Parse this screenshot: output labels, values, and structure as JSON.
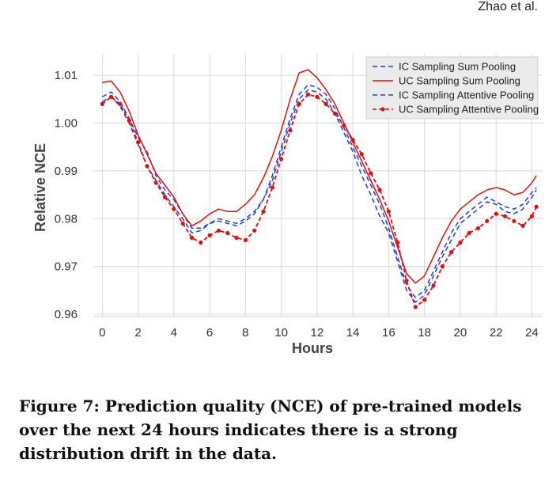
{
  "header": {
    "author": "Zhao et al."
  },
  "caption": {
    "text": "Figure 7: Prediction quality (NCE) of pre-trained models over the next 24 hours indicates there is a strong distribution drift in the data."
  },
  "chart_data": {
    "type": "line",
    "title": "",
    "xlabel": "Hours",
    "ylabel": "Relative NCE",
    "xlim": [
      -0.5,
      24.6
    ],
    "ylim": [
      0.9595,
      1.0145
    ],
    "x_ticks": [
      0,
      2,
      4,
      6,
      8,
      10,
      12,
      14,
      16,
      18,
      20,
      22,
      24
    ],
    "y_ticks": [
      0.96,
      0.97,
      0.98,
      0.99,
      1.0,
      1.01
    ],
    "y_tick_labels": [
      "0.96",
      "0.97",
      "0.98",
      "0.99",
      "1.00",
      "1.01"
    ],
    "grid": true,
    "legend_position": "top-right",
    "x": [
      0,
      0.5,
      1,
      1.5,
      2,
      2.5,
      3,
      3.5,
      4,
      4.5,
      5,
      5.5,
      6,
      6.5,
      7,
      7.5,
      8,
      8.5,
      9,
      9.5,
      10,
      10.5,
      11,
      11.5,
      12,
      12.5,
      13,
      13.5,
      14,
      14.5,
      15,
      15.5,
      16,
      16.5,
      17,
      17.5,
      18,
      18.5,
      19,
      19.5,
      20,
      20.5,
      21,
      21.5,
      22,
      22.5,
      23,
      23.5,
      24,
      24.25
    ],
    "series": [
      {
        "name": "IC Sampling Sum Pooling",
        "color": "#1f3fd6",
        "style": "dashed",
        "marker": false,
        "values": [
          1.0055,
          1.0065,
          1.0045,
          1.001,
          0.997,
          0.994,
          0.989,
          0.986,
          0.984,
          0.981,
          0.978,
          0.978,
          0.979,
          0.98,
          0.9795,
          0.979,
          0.98,
          0.9815,
          0.984,
          0.989,
          0.995,
          1.001,
          1.006,
          1.008,
          1.0075,
          1.006,
          1.003,
          0.999,
          0.995,
          0.991,
          0.987,
          0.983,
          0.978,
          0.972,
          0.966,
          0.9635,
          0.965,
          0.969,
          0.973,
          0.977,
          0.98,
          0.9815,
          0.983,
          0.9845,
          0.9835,
          0.9825,
          0.982,
          0.983,
          0.9855,
          0.9865
        ]
      },
      {
        "name": "UC Sampling Sum Pooling",
        "color": "#e01010",
        "style": "solid",
        "marker": false,
        "values": [
          1.0085,
          1.0088,
          1.0065,
          1.0025,
          0.9975,
          0.9935,
          0.9895,
          0.987,
          0.9845,
          0.981,
          0.9785,
          0.9795,
          0.981,
          0.982,
          0.9815,
          0.9815,
          0.983,
          0.985,
          0.9885,
          0.993,
          0.9985,
          1.005,
          1.0105,
          1.0112,
          1.0095,
          1.007,
          1.004,
          1.0,
          0.996,
          0.992,
          0.988,
          0.984,
          0.9795,
          0.974,
          0.9685,
          0.9665,
          0.968,
          0.972,
          0.976,
          0.9795,
          0.982,
          0.9835,
          0.985,
          0.986,
          0.9865,
          0.986,
          0.985,
          0.9855,
          0.9875,
          0.989
        ]
      },
      {
        "name": "IC Sampling Attentive Pooling",
        "color": "#1f3fd6",
        "style": "dashed",
        "marker": false,
        "values": [
          1.0045,
          1.0055,
          1.0035,
          1.0,
          0.9955,
          0.991,
          0.988,
          0.985,
          0.9825,
          0.98,
          0.977,
          0.9775,
          0.979,
          0.9795,
          0.979,
          0.9785,
          0.9795,
          0.981,
          0.984,
          0.988,
          0.994,
          1.0,
          1.005,
          1.007,
          1.0065,
          1.005,
          1.002,
          0.998,
          0.994,
          0.989,
          0.985,
          0.9805,
          0.977,
          0.971,
          0.965,
          0.9625,
          0.964,
          0.968,
          0.972,
          0.9755,
          0.979,
          0.9805,
          0.982,
          0.9835,
          0.983,
          0.9815,
          0.981,
          0.982,
          0.9845,
          0.986
        ]
      },
      {
        "name": "UC Sampling Attentive Pooling",
        "color": "#e01010",
        "style": "dash-dot",
        "marker": true,
        "values": [
          1.004,
          1.0055,
          1.004,
          1.0005,
          0.996,
          0.991,
          0.9875,
          0.9845,
          0.982,
          0.979,
          0.976,
          0.975,
          0.9765,
          0.9775,
          0.977,
          0.976,
          0.9755,
          0.9775,
          0.9815,
          0.9865,
          0.9925,
          0.9985,
          1.004,
          1.006,
          1.0055,
          1.004,
          1.002,
          0.9995,
          0.9965,
          0.9935,
          0.9895,
          0.986,
          0.9815,
          0.975,
          0.967,
          0.9615,
          0.963,
          0.966,
          0.97,
          0.973,
          0.975,
          0.977,
          0.978,
          0.9795,
          0.981,
          0.9805,
          0.9795,
          0.9785,
          0.9805,
          0.9825
        ]
      }
    ]
  }
}
